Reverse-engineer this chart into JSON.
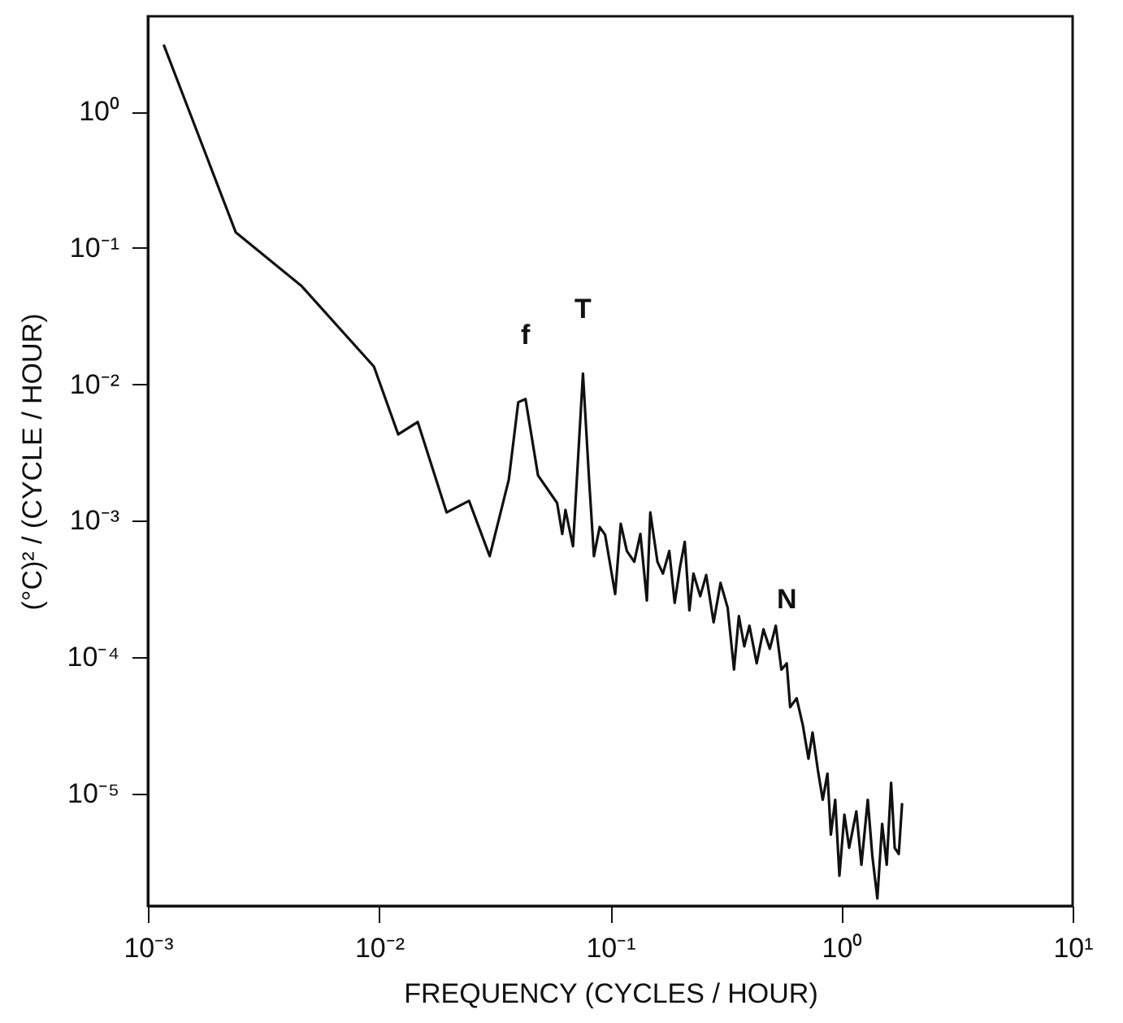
{
  "chart_data": {
    "type": "line",
    "xlabel": "FREQUENCY (CYCLES / HOUR)",
    "ylabel": "(°C)² / (CYCLE / HOUR)",
    "log": "xy",
    "grid": false,
    "xlim": [
      0.001,
      10
    ],
    "ylim": [
      1.5e-06,
      5
    ],
    "xticks": [
      {
        "value": 0.001,
        "label": "10⁻³"
      },
      {
        "value": 0.01,
        "label": "10⁻²"
      },
      {
        "value": 0.1,
        "label": "10⁻¹"
      },
      {
        "value": 1,
        "label": "10⁰"
      },
      {
        "value": 10,
        "label": "10¹"
      }
    ],
    "yticks": [
      {
        "value": 1,
        "label": "10⁰"
      },
      {
        "value": 0.1,
        "label": "10⁻¹"
      },
      {
        "value": 0.01,
        "label": "10⁻²"
      },
      {
        "value": 0.001,
        "label": "10⁻³"
      },
      {
        "value": 0.0001,
        "label": "10⁻⁴"
      },
      {
        "value": 1e-05,
        "label": "10⁻⁵"
      }
    ],
    "annotations": [
      {
        "text": "f",
        "x": 0.043,
        "y": 0.0078
      },
      {
        "text": "T",
        "x": 0.0762,
        "y": 0.012
      },
      {
        "text": "N",
        "x": 0.58,
        "y": 9e-05
      }
    ],
    "series": [
      {
        "color": "#111111",
        "x": [
          0.00117,
          0.0024,
          0.0046,
          0.0095,
          0.0121,
          0.0147,
          0.0196,
          0.0245,
          0.0301,
          0.0364,
          0.04,
          0.043,
          0.0487,
          0.0589,
          0.062,
          0.064,
          0.069,
          0.0762,
          0.081,
          0.085,
          0.09,
          0.095,
          0.105,
          0.111,
          0.118,
          0.127,
          0.135,
          0.144,
          0.149,
          0.16,
          0.169,
          0.18,
          0.19,
          0.2,
          0.21,
          0.22,
          0.229,
          0.245,
          0.26,
          0.28,
          0.3,
          0.322,
          0.343,
          0.36,
          0.38,
          0.4,
          0.43,
          0.46,
          0.49,
          0.52,
          0.55,
          0.58,
          0.6,
          0.64,
          0.68,
          0.72,
          0.75,
          0.79,
          0.83,
          0.87,
          0.9,
          0.94,
          0.98,
          1.03,
          1.08,
          1.16,
          1.22,
          1.3,
          1.36,
          1.43,
          1.5,
          1.57,
          1.64,
          1.7,
          1.77,
          1.83
        ],
        "values": [
          3.1,
          0.13,
          0.053,
          0.0135,
          0.0043,
          0.0053,
          0.00115,
          0.0014,
          0.00055,
          0.002,
          0.0074,
          0.0078,
          0.00215,
          0.00135,
          0.0008,
          0.0012,
          0.00065,
          0.012,
          0.002,
          0.00055,
          0.0009,
          0.00079,
          0.00029,
          0.00095,
          0.0006,
          0.0005,
          0.0008,
          0.00026,
          0.00115,
          0.0005,
          0.00041,
          0.0006,
          0.00025,
          0.00045,
          0.0007,
          0.00022,
          0.00041,
          0.00028,
          0.0004,
          0.00018,
          0.00035,
          0.00023,
          8.1e-05,
          0.0002,
          0.00012,
          0.00017,
          9e-05,
          0.00016,
          0.000115,
          0.00017,
          8.1e-05,
          9e-05,
          4.3e-05,
          5e-05,
          3.2e-05,
          1.8e-05,
          2.8e-05,
          1.5e-05,
          9e-06,
          1.4e-05,
          5e-06,
          9e-06,
          2.5e-06,
          7e-06,
          4e-06,
          7.4e-06,
          3e-06,
          9e-06,
          3.5e-06,
          1.7e-06,
          6e-06,
          3e-06,
          1.2e-05,
          4e-06,
          3.6e-06,
          8.5e-06
        ]
      }
    ]
  }
}
